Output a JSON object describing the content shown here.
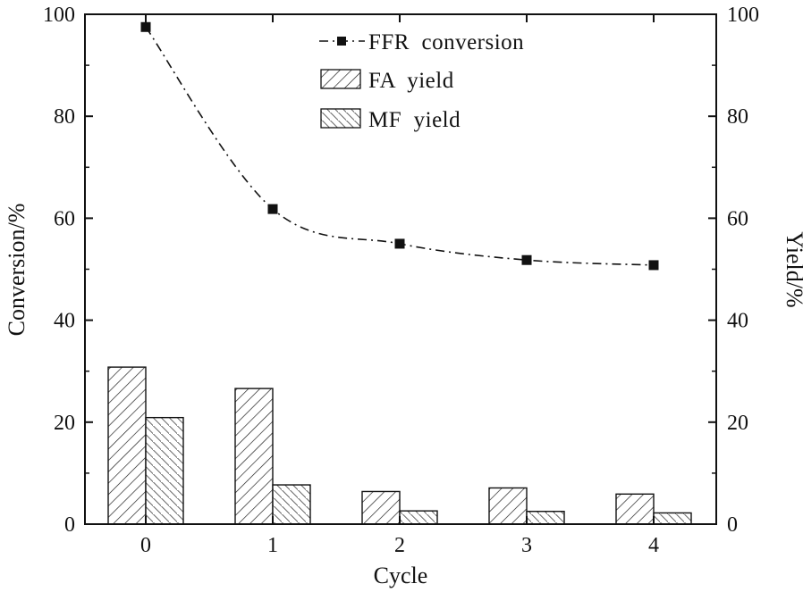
{
  "chart_data": {
    "type": "bar",
    "categories": [
      "0",
      "1",
      "2",
      "3",
      "4"
    ],
    "xlabel": "Cycle",
    "ylabel_left": "Conversion/%",
    "ylabel_right": "Yield/%",
    "ylim": [
      0,
      100
    ],
    "yticks": [
      "0",
      "20",
      "40",
      "60",
      "80",
      "100"
    ],
    "legend_position": "top-center",
    "grid": false,
    "series": [
      {
        "name": "FFR  conversion",
        "type": "line",
        "marker": "square",
        "line_style": "dash-dot",
        "values": [
          97.5,
          61.8,
          55.0,
          51.8,
          50.8
        ]
      },
      {
        "name": "FA  yield",
        "type": "bar",
        "pattern": "diagonal-hatch",
        "values": [
          30.8,
          26.6,
          6.4,
          7.1,
          5.9
        ]
      },
      {
        "name": "MF  yield",
        "type": "bar",
        "pattern": "cross-hatch",
        "values": [
          20.9,
          7.7,
          2.6,
          2.5,
          2.2
        ]
      }
    ]
  }
}
